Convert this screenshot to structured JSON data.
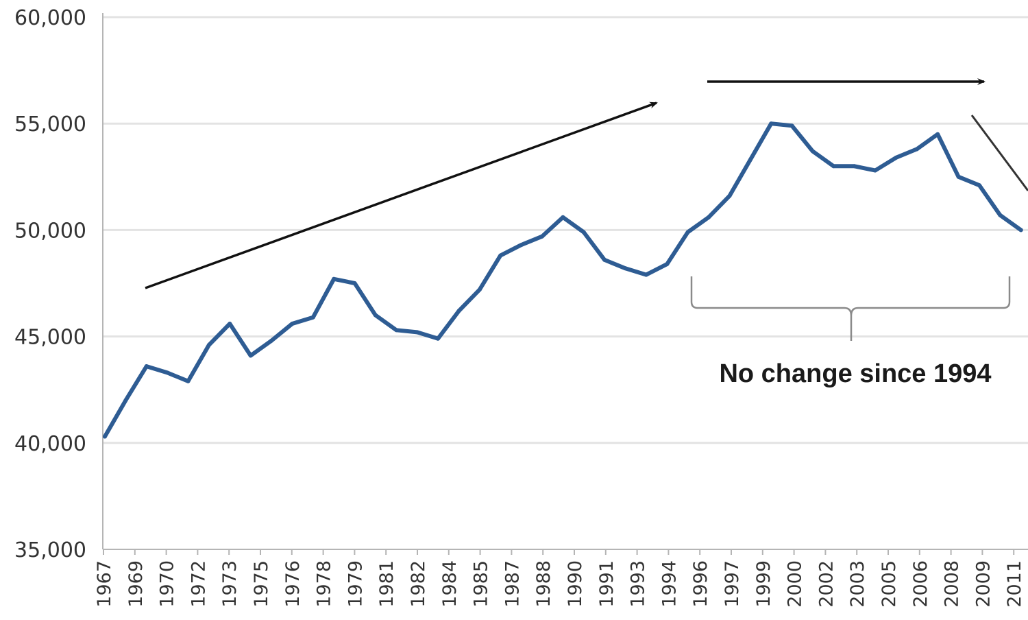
{
  "chart_data": {
    "type": "line",
    "title": "",
    "xlabel": "",
    "ylabel": "",
    "ylim": [
      35000,
      60000
    ],
    "yticks": [
      "35,000",
      "40,000",
      "45,000",
      "50,000",
      "55,000",
      "60,000"
    ],
    "xtick_labels": [
      "1967",
      "1969",
      "1970",
      "1972",
      "1973",
      "1975",
      "1976",
      "1978",
      "1979",
      "1981",
      "1982",
      "1984",
      "1985",
      "1987",
      "1988",
      "1990",
      "1991",
      "1993",
      "1994",
      "1996",
      "1997",
      "1999",
      "2000",
      "2002",
      "2003",
      "2005",
      "2006",
      "2008",
      "2009",
      "2011"
    ],
    "grid": "horizontal",
    "series": [
      {
        "color": "#2e5c93",
        "x": [
          1967,
          1968,
          1969,
          1970,
          1971,
          1972,
          1973,
          1974,
          1975,
          1976,
          1977,
          1978,
          1979,
          1980,
          1981,
          1982,
          1983,
          1984,
          1985,
          1986,
          1987,
          1988,
          1989,
          1990,
          1991,
          1992,
          1993,
          1994,
          1995,
          1996,
          1997,
          1998,
          1999,
          2000,
          2001,
          2002,
          2003,
          2004,
          2005,
          2006,
          2007,
          2008,
          2009,
          2010,
          2011
        ],
        "values": [
          40300,
          42000,
          43600,
          43300,
          42900,
          44600,
          45600,
          44100,
          44800,
          45600,
          45900,
          47700,
          47500,
          46000,
          45300,
          45200,
          44900,
          46200,
          47200,
          48800,
          49300,
          49700,
          50600,
          49900,
          48600,
          48200,
          47900,
          48400,
          49900,
          50600,
          51600,
          53300,
          55000,
          54900,
          53700,
          53000,
          53000,
          52800,
          53400,
          53800,
          54500,
          52500,
          52100,
          50700,
          50000
        ]
      }
    ],
    "annotations": [
      {
        "type": "arrow",
        "direction": "up-right"
      },
      {
        "type": "arrow",
        "direction": "right"
      },
      {
        "type": "arrow",
        "direction": "down-right"
      },
      {
        "type": "brace",
        "text": "No change since 1994"
      }
    ]
  }
}
